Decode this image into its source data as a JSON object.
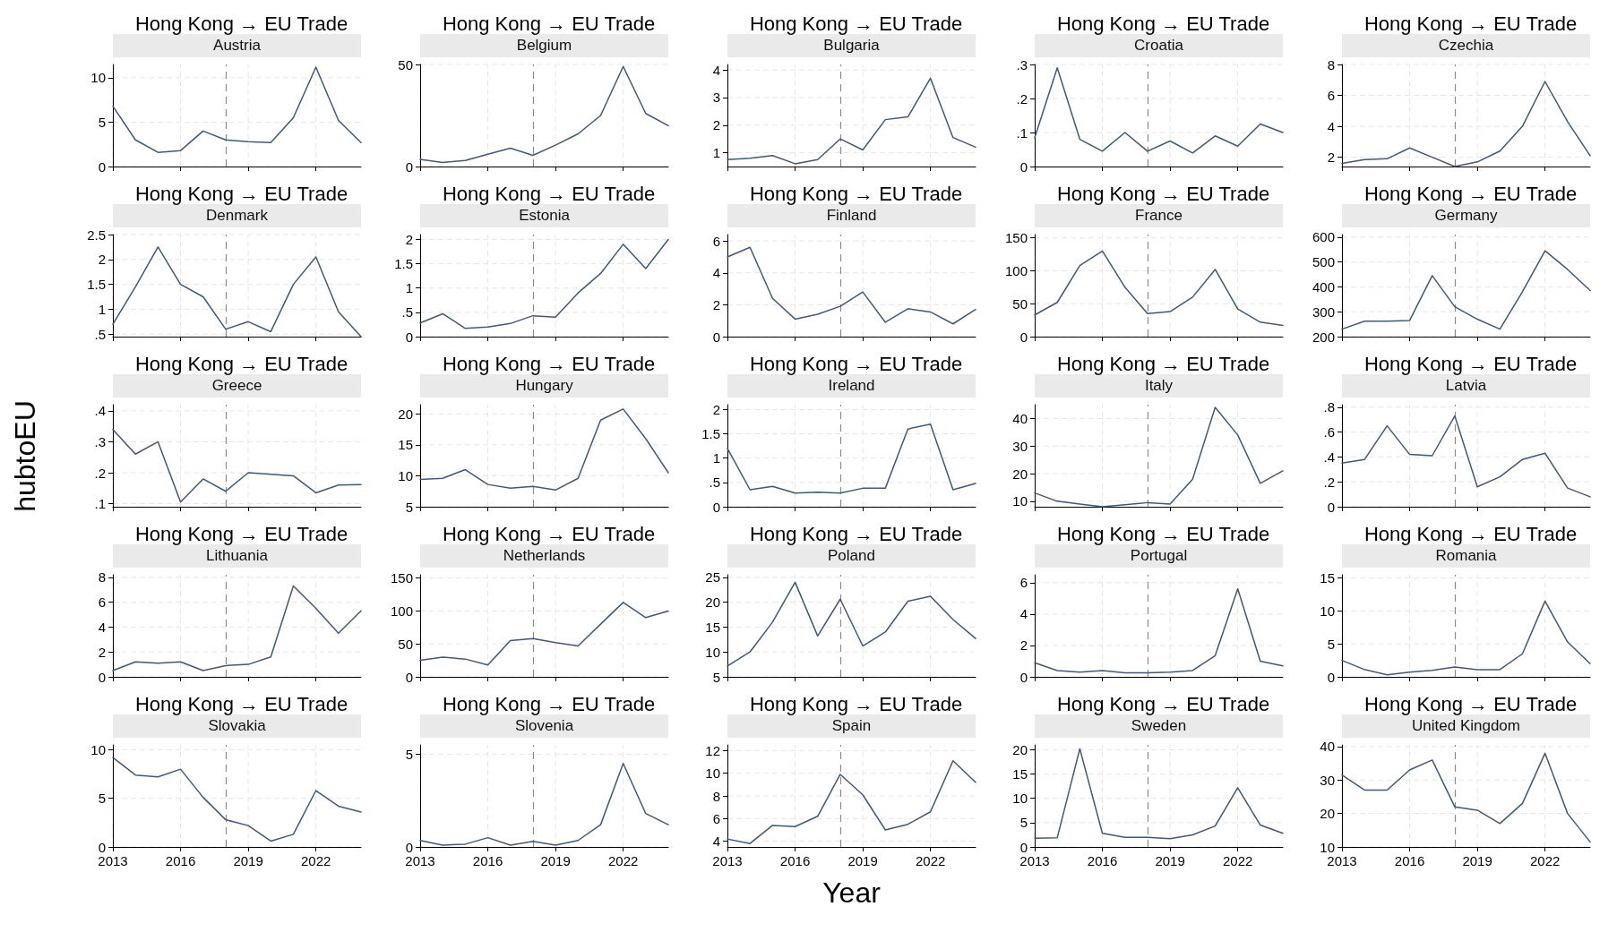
{
  "chart_data": [
    {
      "type": "line",
      "title": "Hong Kong → EU Trade",
      "subtitle": "Austria",
      "x": [
        2013,
        2014,
        2015,
        2016,
        2017,
        2018,
        2019,
        2020,
        2021,
        2022,
        2023,
        2024
      ],
      "color": "#3e5a78",
      "values": [
        6.8,
        3,
        1.6,
        1.8,
        4,
        3,
        2.8,
        2.7,
        5.5,
        11.2,
        5.2,
        2.7
      ],
      "xlim": [
        2013,
        2024
      ],
      "xticks": [
        2013,
        2016,
        2019,
        2022
      ],
      "ylim": [
        0,
        11.5
      ],
      "yticks": [
        0,
        5,
        10
      ],
      "ref_lines": [
        {
          "axis": "x",
          "value": 2018,
          "color": "#8a8a8a",
          "line_style": "dashed"
        }
      ],
      "grid": true,
      "tick_labels": "y"
    },
    {
      "type": "line",
      "title": "Hong Kong → EU Trade",
      "subtitle": "Belgium",
      "x": [
        2013,
        2014,
        2015,
        2016,
        2017,
        2018,
        2019,
        2020,
        2021,
        2022,
        2023,
        2024
      ],
      "color": "#3e5a78",
      "values": [
        3.5,
        2,
        3,
        6,
        9,
        5.5,
        10.5,
        16,
        25,
        49,
        26,
        20
      ],
      "xlim": [
        2013,
        2024
      ],
      "xticks": [
        2013,
        2016,
        2019,
        2022
      ],
      "ylim": [
        0,
        50
      ],
      "yticks": [
        0,
        50
      ],
      "ref_lines": [
        {
          "axis": "x",
          "value": 2018,
          "color": "#8a8a8a",
          "line_style": "dashed"
        }
      ],
      "grid": true,
      "tick_labels": "y"
    },
    {
      "type": "line",
      "title": "Hong Kong → EU Trade",
      "subtitle": "Bulgaria",
      "x": [
        2013,
        2014,
        2015,
        2016,
        2017,
        2018,
        2019,
        2020,
        2021,
        2022,
        2023,
        2024
      ],
      "color": "#3e5a78",
      "values": [
        0.75,
        0.8,
        0.9,
        0.6,
        0.75,
        1.5,
        1.1,
        2.2,
        2.3,
        3.7,
        1.55,
        1.2
      ],
      "xlim": [
        2013,
        2024
      ],
      "xticks": [
        2013,
        2016,
        2019,
        2022
      ],
      "ylim": [
        0.5,
        4.2
      ],
      "yticks": [
        1,
        2,
        3,
        4
      ],
      "ref_lines": [
        {
          "axis": "x",
          "value": 2018,
          "color": "#8a8a8a",
          "line_style": "dashed"
        }
      ],
      "grid": true,
      "tick_labels": "y"
    },
    {
      "type": "line",
      "title": "Hong Kong → EU Trade",
      "subtitle": "Croatia",
      "x": [
        2013,
        2014,
        2015,
        2016,
        2017,
        2018,
        2019,
        2020,
        2021,
        2022,
        2023,
        2024
      ],
      "color": "#3e5a78",
      "values": [
        0.085,
        0.29,
        0.08,
        0.045,
        0.1,
        0.045,
        0.075,
        0.04,
        0.09,
        0.06,
        0.125,
        0.1
      ],
      "xlim": [
        2013,
        2024
      ],
      "xticks": [
        2013,
        2016,
        2019,
        2022
      ],
      "ylim": [
        0,
        0.3
      ],
      "yticks": [
        0,
        {
          "value": 0.1,
          "label": ".1"
        },
        {
          "value": 0.2,
          "label": ".2"
        },
        {
          "value": 0.3,
          "label": ".3"
        }
      ],
      "ref_lines": [
        {
          "axis": "x",
          "value": 2018,
          "color": "#8a8a8a",
          "line_style": "dashed"
        }
      ],
      "grid": true,
      "tick_labels": "y"
    },
    {
      "type": "line",
      "title": "Hong Kong → EU Trade",
      "subtitle": "Czechia",
      "x": [
        2013,
        2014,
        2015,
        2016,
        2017,
        2018,
        2019,
        2020,
        2021,
        2022,
        2023,
        2024
      ],
      "color": "#3e5a78",
      "values": [
        1.6,
        1.85,
        1.9,
        2.6,
        2,
        1.4,
        1.7,
        2.4,
        4,
        6.9,
        4.3,
        2.1
      ],
      "xlim": [
        2013,
        2024
      ],
      "xticks": [
        2013,
        2016,
        2019,
        2022
      ],
      "ylim": [
        1.4,
        8
      ],
      "yticks": [
        2,
        4,
        6,
        8
      ],
      "ref_lines": [
        {
          "axis": "x",
          "value": 2018,
          "color": "#8a8a8a",
          "line_style": "dashed"
        }
      ],
      "grid": true,
      "tick_labels": "y"
    },
    {
      "type": "line",
      "title": "Hong Kong → EU Trade",
      "subtitle": "Denmark",
      "x": [
        2013,
        2014,
        2015,
        2016,
        2017,
        2018,
        2019,
        2020,
        2021,
        2022,
        2023,
        2024
      ],
      "color": "#3e5a78",
      "values": [
        0.7,
        1.45,
        2.25,
        1.5,
        1.25,
        0.6,
        0.75,
        0.55,
        1.5,
        2.05,
        0.95,
        0.45
      ],
      "xlim": [
        2013,
        2024
      ],
      "xticks": [
        2013,
        2016,
        2019,
        2022
      ],
      "ylim": [
        0.45,
        2.5
      ],
      "yticks": [
        {
          "value": 0.5,
          "label": ".5"
        },
        1,
        1.5,
        2,
        2.5
      ],
      "ref_lines": [
        {
          "axis": "x",
          "value": 2018,
          "color": "#8a8a8a",
          "line_style": "dashed"
        }
      ],
      "grid": true,
      "tick_labels": "y"
    },
    {
      "type": "line",
      "title": "Hong Kong → EU Trade",
      "subtitle": "Estonia",
      "x": [
        2013,
        2014,
        2015,
        2016,
        2017,
        2018,
        2019,
        2020,
        2021,
        2022,
        2023,
        2024
      ],
      "color": "#3e5a78",
      "values": [
        0.28,
        0.47,
        0.17,
        0.2,
        0.27,
        0.43,
        0.4,
        0.9,
        1.3,
        1.9,
        1.4,
        2
      ],
      "xlim": [
        2013,
        2024
      ],
      "xticks": [
        2013,
        2016,
        2019,
        2022
      ],
      "ylim": [
        0,
        2.1
      ],
      "yticks": [
        0,
        {
          "value": 0.5,
          "label": ".5"
        },
        1,
        1.5,
        2
      ],
      "ref_lines": [
        {
          "axis": "x",
          "value": 2018,
          "color": "#8a8a8a",
          "line_style": "dashed"
        }
      ],
      "grid": true,
      "tick_labels": "y"
    },
    {
      "type": "line",
      "title": "Hong Kong → EU Trade",
      "subtitle": "Finland",
      "x": [
        2013,
        2014,
        2015,
        2016,
        2017,
        2018,
        2019,
        2020,
        2021,
        2022,
        2023,
        2024
      ],
      "color": "#3e5a78",
      "values": [
        5,
        5.6,
        2.4,
        1.1,
        1.4,
        1.9,
        2.8,
        0.9,
        1.75,
        1.55,
        0.8,
        1.7
      ],
      "xlim": [
        2013,
        2024
      ],
      "xticks": [
        2013,
        2016,
        2019,
        2022
      ],
      "ylim": [
        0,
        6.4
      ],
      "yticks": [
        0,
        2,
        4,
        6
      ],
      "ref_lines": [
        {
          "axis": "x",
          "value": 2018,
          "color": "#8a8a8a",
          "line_style": "dashed"
        }
      ],
      "grid": true,
      "tick_labels": "y"
    },
    {
      "type": "line",
      "title": "Hong Kong → EU Trade",
      "subtitle": "France",
      "x": [
        2013,
        2014,
        2015,
        2016,
        2017,
        2018,
        2019,
        2020,
        2021,
        2022,
        2023,
        2024
      ],
      "color": "#3e5a78",
      "values": [
        33,
        52,
        108,
        130,
        75,
        35,
        38,
        60,
        102,
        42,
        22,
        17
      ],
      "xlim": [
        2013,
        2024
      ],
      "xticks": [
        2013,
        2016,
        2019,
        2022
      ],
      "ylim": [
        0,
        155
      ],
      "yticks": [
        0,
        50,
        100,
        150
      ],
      "ref_lines": [
        {
          "axis": "x",
          "value": 2018,
          "color": "#8a8a8a",
          "line_style": "dashed"
        }
      ],
      "grid": true,
      "tick_labels": "y"
    },
    {
      "type": "line",
      "title": "Hong Kong → EU Trade",
      "subtitle": "Germany",
      "x": [
        2013,
        2014,
        2015,
        2016,
        2017,
        2018,
        2019,
        2020,
        2021,
        2022,
        2023,
        2024
      ],
      "color": "#3e5a78",
      "values": [
        230,
        262,
        262,
        265,
        445,
        320,
        270,
        230,
        380,
        545,
        470,
        385
      ],
      "xlim": [
        2013,
        2024
      ],
      "xticks": [
        2013,
        2016,
        2019,
        2022
      ],
      "ylim": [
        200,
        610
      ],
      "yticks": [
        200,
        300,
        400,
        500,
        600
      ],
      "ref_lines": [
        {
          "axis": "x",
          "value": 2018,
          "color": "#8a8a8a",
          "line_style": "dashed"
        }
      ],
      "grid": true,
      "tick_labels": "y"
    },
    {
      "type": "line",
      "title": "Hong Kong → EU Trade",
      "subtitle": "Greece",
      "ylabel": "hubtoEU",
      "x": [
        2013,
        2014,
        2015,
        2016,
        2017,
        2018,
        2019,
        2020,
        2021,
        2022,
        2023,
        2024
      ],
      "color": "#3e5a78",
      "values": [
        0.34,
        0.26,
        0.3,
        0.105,
        0.18,
        0.14,
        0.2,
        0.195,
        0.19,
        0.135,
        0.16,
        0.162
      ],
      "xlim": [
        2013,
        2024
      ],
      "xticks": [
        2013,
        2016,
        2019,
        2022
      ],
      "ylim": [
        0.09,
        0.42
      ],
      "yticks": [
        {
          "value": 0.1,
          "label": ".1"
        },
        {
          "value": 0.2,
          "label": ".2"
        },
        {
          "value": 0.3,
          "label": ".3"
        },
        {
          "value": 0.4,
          "label": ".4"
        }
      ],
      "ref_lines": [
        {
          "axis": "x",
          "value": 2018,
          "color": "#8a8a8a",
          "line_style": "dashed"
        }
      ],
      "grid": true,
      "tick_labels": "y"
    },
    {
      "type": "line",
      "title": "Hong Kong → EU Trade",
      "subtitle": "Hungary",
      "x": [
        2013,
        2014,
        2015,
        2016,
        2017,
        2018,
        2019,
        2020,
        2021,
        2022,
        2023,
        2024
      ],
      "color": "#3e5a78",
      "values": [
        9.4,
        9.6,
        11,
        8.6,
        8,
        8.3,
        7.7,
        9.6,
        19,
        20.8,
        16,
        10.5
      ],
      "xlim": [
        2013,
        2024
      ],
      "xticks": [
        2013,
        2016,
        2019,
        2022
      ],
      "ylim": [
        5,
        21.5
      ],
      "yticks": [
        5,
        10,
        15,
        20
      ],
      "ref_lines": [
        {
          "axis": "x",
          "value": 2018,
          "color": "#8a8a8a",
          "line_style": "dashed"
        }
      ],
      "grid": true,
      "tick_labels": "y"
    },
    {
      "type": "line",
      "title": "Hong Kong → EU Trade",
      "subtitle": "Ireland",
      "x": [
        2013,
        2014,
        2015,
        2016,
        2017,
        2018,
        2019,
        2020,
        2021,
        2022,
        2023,
        2024
      ],
      "color": "#3e5a78",
      "values": [
        1.2,
        0.35,
        0.42,
        0.28,
        0.3,
        0.28,
        0.38,
        0.38,
        1.6,
        1.7,
        0.35,
        0.48
      ],
      "xlim": [
        2013,
        2024
      ],
      "xticks": [
        2013,
        2016,
        2019,
        2022
      ],
      "ylim": [
        0,
        2.1
      ],
      "yticks": [
        0,
        {
          "value": 0.5,
          "label": ".5"
        },
        1,
        1.5,
        2
      ],
      "ref_lines": [
        {
          "axis": "x",
          "value": 2018,
          "color": "#8a8a8a",
          "line_style": "dashed"
        }
      ],
      "grid": true,
      "tick_labels": "y"
    },
    {
      "type": "line",
      "title": "Hong Kong → EU Trade",
      "subtitle": "Italy",
      "x": [
        2013,
        2014,
        2015,
        2016,
        2017,
        2018,
        2019,
        2020,
        2021,
        2022,
        2023,
        2024
      ],
      "color": "#3e5a78",
      "values": [
        13,
        10,
        9,
        8,
        8.7,
        9.5,
        9,
        18,
        44,
        34,
        16.5,
        21
      ],
      "xlim": [
        2013,
        2024
      ],
      "xticks": [
        2013,
        2016,
        2019,
        2022
      ],
      "ylim": [
        8,
        45
      ],
      "yticks": [
        10,
        20,
        30,
        40
      ],
      "ref_lines": [
        {
          "axis": "x",
          "value": 2018,
          "color": "#8a8a8a",
          "line_style": "dashed"
        }
      ],
      "grid": true,
      "tick_labels": "y"
    },
    {
      "type": "line",
      "title": "Hong Kong → EU Trade",
      "subtitle": "Latvia",
      "x": [
        2013,
        2014,
        2015,
        2016,
        2017,
        2018,
        2019,
        2020,
        2021,
        2022,
        2023,
        2024
      ],
      "color": "#3e5a78",
      "values": [
        0.35,
        0.38,
        0.65,
        0.42,
        0.41,
        0.73,
        0.16,
        0.24,
        0.38,
        0.43,
        0.15,
        0.08
      ],
      "xlim": [
        2013,
        2024
      ],
      "xticks": [
        2013,
        2016,
        2019,
        2022
      ],
      "ylim": [
        0,
        0.82
      ],
      "yticks": [
        0,
        {
          "value": 0.2,
          "label": ".2"
        },
        {
          "value": 0.4,
          "label": ".4"
        },
        {
          "value": 0.6,
          "label": ".6"
        },
        {
          "value": 0.8,
          "label": ".8"
        }
      ],
      "ref_lines": [
        {
          "axis": "x",
          "value": 2018,
          "color": "#8a8a8a",
          "line_style": "dashed"
        }
      ],
      "grid": true,
      "tick_labels": "y"
    },
    {
      "type": "line",
      "title": "Hong Kong → EU Trade",
      "subtitle": "Lithuania",
      "x": [
        2013,
        2014,
        2015,
        2016,
        2017,
        2018,
        2019,
        2020,
        2021,
        2022,
        2023,
        2024
      ],
      "color": "#3e5a78",
      "values": [
        0.5,
        1.2,
        1.1,
        1.2,
        0.5,
        0.9,
        1,
        1.6,
        7.3,
        5.5,
        3.5,
        5.3
      ],
      "xlim": [
        2013,
        2024
      ],
      "xticks": [
        2013,
        2016,
        2019,
        2022
      ],
      "ylim": [
        0,
        8.2
      ],
      "yticks": [
        0,
        2,
        4,
        6,
        8
      ],
      "ref_lines": [
        {
          "axis": "x",
          "value": 2018,
          "color": "#8a8a8a",
          "line_style": "dashed"
        }
      ],
      "grid": true,
      "tick_labels": "y"
    },
    {
      "type": "line",
      "title": "Hong Kong → EU Trade",
      "subtitle": "Netherlands",
      "x": [
        2013,
        2014,
        2015,
        2016,
        2017,
        2018,
        2019,
        2020,
        2021,
        2022,
        2023,
        2024
      ],
      "color": "#3e5a78",
      "values": [
        25,
        30,
        27,
        18,
        55,
        58,
        52,
        47,
        80,
        113,
        90,
        100
      ],
      "xlim": [
        2013,
        2024
      ],
      "xticks": [
        2013,
        2016,
        2019,
        2022
      ],
      "ylim": [
        0,
        155
      ],
      "yticks": [
        0,
        50,
        100,
        150
      ],
      "ref_lines": [
        {
          "axis": "x",
          "value": 2018,
          "color": "#8a8a8a",
          "line_style": "dashed"
        }
      ],
      "grid": true,
      "tick_labels": "y"
    },
    {
      "type": "line",
      "title": "Hong Kong → EU Trade",
      "subtitle": "Poland",
      "x": [
        2013,
        2014,
        2015,
        2016,
        2017,
        2018,
        2019,
        2020,
        2021,
        2022,
        2023,
        2024
      ],
      "color": "#3e5a78",
      "values": [
        7.2,
        10,
        16,
        24,
        13.2,
        20.6,
        11.2,
        14,
        20.2,
        21.2,
        16.5,
        12.7
      ],
      "xlim": [
        2013,
        2024
      ],
      "xticks": [
        2013,
        2016,
        2019,
        2022
      ],
      "ylim": [
        5,
        25.5
      ],
      "yticks": [
        5,
        10,
        15,
        20,
        25
      ],
      "ref_lines": [
        {
          "axis": "x",
          "value": 2018,
          "color": "#8a8a8a",
          "line_style": "dashed"
        }
      ],
      "grid": true,
      "tick_labels": "y"
    },
    {
      "type": "line",
      "title": "Hong Kong → EU Trade",
      "subtitle": "Portugal",
      "x": [
        2013,
        2014,
        2015,
        2016,
        2017,
        2018,
        2019,
        2020,
        2021,
        2022,
        2023,
        2024
      ],
      "color": "#3e5a78",
      "values": [
        0.9,
        0.4,
        0.3,
        0.4,
        0.25,
        0.25,
        0.3,
        0.4,
        1.35,
        5.6,
        1,
        0.7
      ],
      "xlim": [
        2013,
        2024
      ],
      "xticks": [
        2013,
        2016,
        2019,
        2022
      ],
      "ylim": [
        0,
        6.5
      ],
      "yticks": [
        0,
        2,
        4,
        6
      ],
      "ref_lines": [
        {
          "axis": "x",
          "value": 2018,
          "color": "#8a8a8a",
          "line_style": "dashed"
        }
      ],
      "grid": true,
      "tick_labels": "y"
    },
    {
      "type": "line",
      "title": "Hong Kong → EU Trade",
      "subtitle": "Romania",
      "x": [
        2013,
        2014,
        2015,
        2016,
        2017,
        2018,
        2019,
        2020,
        2021,
        2022,
        2023,
        2024
      ],
      "color": "#3e5a78",
      "values": [
        2.5,
        1.1,
        0.3,
        0.7,
        1,
        1.5,
        1.1,
        1.1,
        3.5,
        11.5,
        5.3,
        2
      ],
      "xlim": [
        2013,
        2024
      ],
      "xticks": [
        2013,
        2016,
        2019,
        2022
      ],
      "ylim": [
        0,
        15.5
      ],
      "yticks": [
        0,
        5,
        10,
        15
      ],
      "ref_lines": [
        {
          "axis": "x",
          "value": 2018,
          "color": "#8a8a8a",
          "line_style": "dashed"
        }
      ],
      "grid": true,
      "tick_labels": "y"
    },
    {
      "type": "line",
      "title": "Hong Kong → EU Trade",
      "subtitle": "Slovakia",
      "x": [
        2013,
        2014,
        2015,
        2016,
        2017,
        2018,
        2019,
        2020,
        2021,
        2022,
        2023,
        2024
      ],
      "color": "#3e5a78",
      "values": [
        9.2,
        7.4,
        7.2,
        8,
        5.1,
        2.8,
        2.2,
        0.6,
        1.3,
        5.8,
        4.2,
        3.6
      ],
      "xlim": [
        2013,
        2024
      ],
      "xticks": [
        2013,
        2016,
        2019,
        2022
      ],
      "ylim": [
        0,
        10.5
      ],
      "yticks": [
        0,
        5,
        10
      ],
      "ref_lines": [
        {
          "axis": "x",
          "value": 2018,
          "color": "#8a8a8a",
          "line_style": "dashed"
        }
      ],
      "grid": true
    },
    {
      "type": "line",
      "title": "Hong Kong → EU Trade",
      "subtitle": "Slovenia",
      "x": [
        2013,
        2014,
        2015,
        2016,
        2017,
        2018,
        2019,
        2020,
        2021,
        2022,
        2023,
        2024
      ],
      "color": "#3e5a78",
      "values": [
        0.35,
        0.1,
        0.15,
        0.5,
        0.1,
        0.3,
        0.1,
        0.35,
        1.2,
        4.5,
        1.8,
        1.2
      ],
      "xlim": [
        2013,
        2024
      ],
      "xticks": [
        2013,
        2016,
        2019,
        2022
      ],
      "ylim": [
        0,
        5.5
      ],
      "yticks": [
        0,
        5
      ],
      "ref_lines": [
        {
          "axis": "x",
          "value": 2018,
          "color": "#8a8a8a",
          "line_style": "dashed"
        }
      ],
      "grid": true
    },
    {
      "type": "line",
      "title": "Hong Kong → EU Trade",
      "subtitle": "Spain",
      "xlabel": "Year",
      "x": [
        2013,
        2014,
        2015,
        2016,
        2017,
        2018,
        2019,
        2020,
        2021,
        2022,
        2023,
        2024
      ],
      "color": "#3e5a78",
      "values": [
        4.2,
        3.8,
        5.4,
        5.3,
        6.2,
        9.9,
        8.1,
        5,
        5.5,
        6.6,
        11.1,
        9.2
      ],
      "xlim": [
        2013,
        2024
      ],
      "xticks": [
        2013,
        2016,
        2019,
        2022
      ],
      "ylim": [
        3.5,
        12.5
      ],
      "yticks": [
        4,
        6,
        8,
        10,
        12
      ],
      "ref_lines": [
        {
          "axis": "x",
          "value": 2018,
          "color": "#8a8a8a",
          "line_style": "dashed"
        }
      ],
      "grid": true
    },
    {
      "type": "line",
      "title": "Hong Kong → EU Trade",
      "subtitle": "Sweden",
      "x": [
        2013,
        2014,
        2015,
        2016,
        2017,
        2018,
        2019,
        2020,
        2021,
        2022,
        2023,
        2024
      ],
      "color": "#3e5a78",
      "values": [
        1.8,
        1.9,
        20.2,
        2.8,
        2,
        2,
        1.7,
        2.5,
        4.3,
        12.2,
        4.5,
        2.8
      ],
      "xlim": [
        2013,
        2024
      ],
      "xticks": [
        2013,
        2016,
        2019,
        2022
      ],
      "ylim": [
        0,
        21
      ],
      "yticks": [
        0,
        5,
        10,
        15,
        20
      ],
      "ref_lines": [
        {
          "axis": "x",
          "value": 2018,
          "color": "#8a8a8a",
          "line_style": "dashed"
        }
      ],
      "grid": true
    },
    {
      "type": "line",
      "title": "Hong Kong → EU Trade",
      "subtitle": "United Kingdom",
      "x": [
        2013,
        2014,
        2015,
        2016,
        2017,
        2018,
        2019,
        2020,
        2021,
        2022,
        2023,
        2024
      ],
      "color": "#3e5a78",
      "values": [
        31.5,
        27,
        27,
        33,
        36,
        22,
        21,
        17,
        23,
        38,
        20,
        11.5
      ],
      "xlim": [
        2013,
        2024
      ],
      "xticks": [
        2013,
        2016,
        2019,
        2022
      ],
      "ylim": [
        10,
        40.5
      ],
      "yticks": [
        10,
        20,
        30,
        40
      ],
      "ref_lines": [
        {
          "axis": "x",
          "value": 2018,
          "color": "#8a8a8a",
          "line_style": "dashed"
        }
      ],
      "grid": true
    }
  ]
}
